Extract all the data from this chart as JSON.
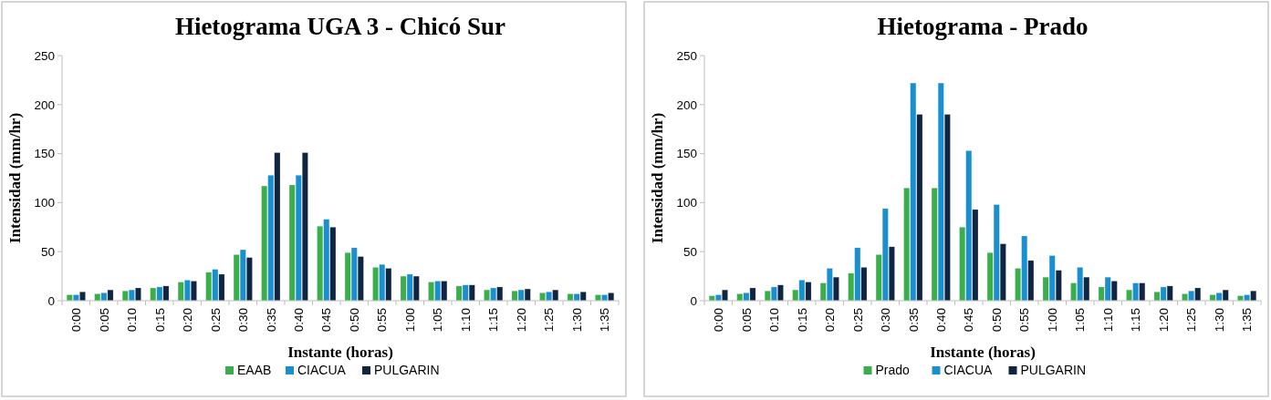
{
  "chart_data": [
    {
      "type": "bar",
      "title": "Hietograma UGA 3 - Chicó Sur",
      "xlabel": "Instante (horas)",
      "ylabel": "Intensidad  (mm/hr)",
      "categories": [
        "0:00",
        "0:05",
        "0:10",
        "0:15",
        "0:20",
        "0:25",
        "0:30",
        "0:35",
        "0:40",
        "0:45",
        "0:50",
        "0:55",
        "1:00",
        "1:05",
        "1:10",
        "1:15",
        "1:20",
        "1:25",
        "1:30",
        "1:35"
      ],
      "ylim": [
        0,
        250
      ],
      "yticks": [
        0,
        50,
        100,
        150,
        200,
        250
      ],
      "legend": "bottom",
      "series": [
        {
          "name": "EAAB",
          "color": "#3aae4a",
          "values": [
            6,
            7,
            10,
            13,
            19,
            29,
            47,
            117,
            118,
            76,
            49,
            34,
            25,
            19,
            15,
            11,
            10,
            8,
            7,
            6
          ]
        },
        {
          "name": "CIACUA",
          "color": "#1a8fd0",
          "values": [
            6,
            8,
            11,
            14,
            21,
            32,
            52,
            128,
            128,
            83,
            54,
            37,
            27,
            20,
            16,
            13,
            11,
            9,
            7,
            6
          ]
        },
        {
          "name": "PULGARIN",
          "color": "#0f2542",
          "values": [
            9,
            11,
            13,
            15,
            20,
            27,
            44,
            151,
            151,
            75,
            45,
            33,
            25,
            20,
            16,
            14,
            12,
            11,
            9,
            8
          ]
        }
      ]
    },
    {
      "type": "bar",
      "title": "Hietograma - Prado",
      "xlabel": "Instante (horas)",
      "ylabel": "Intensidad  (mm/hr)",
      "categories": [
        "0:00",
        "0:05",
        "0:10",
        "0:15",
        "0:20",
        "0:25",
        "0:30",
        "0:35",
        "0:40",
        "0:45",
        "0:50",
        "0:55",
        "1:00",
        "1:05",
        "1:10",
        "1:15",
        "1:20",
        "1:25",
        "1:30",
        "1:35"
      ],
      "ylim": [
        0,
        250
      ],
      "yticks": [
        0,
        50,
        100,
        150,
        200,
        250
      ],
      "legend": "bottom",
      "series": [
        {
          "name": "Prado",
          "color": "#3aae4a",
          "values": [
            5,
            7,
            10,
            11,
            18,
            28,
            47,
            115,
            115,
            75,
            49,
            33,
            24,
            18,
            14,
            11,
            9,
            7,
            6,
            5
          ]
        },
        {
          "name": "CIACUA",
          "color": "#1a8fd0",
          "values": [
            6,
            8,
            14,
            21,
            33,
            54,
            94,
            222,
            222,
            153,
            98,
            66,
            46,
            34,
            24,
            18,
            14,
            10,
            8,
            6
          ]
        },
        {
          "name": "PULGARIN",
          "color": "#0f2542",
          "values": [
            11,
            13,
            16,
            19,
            24,
            34,
            55,
            190,
            190,
            93,
            58,
            41,
            31,
            24,
            20,
            18,
            15,
            13,
            11,
            10
          ]
        }
      ]
    }
  ]
}
